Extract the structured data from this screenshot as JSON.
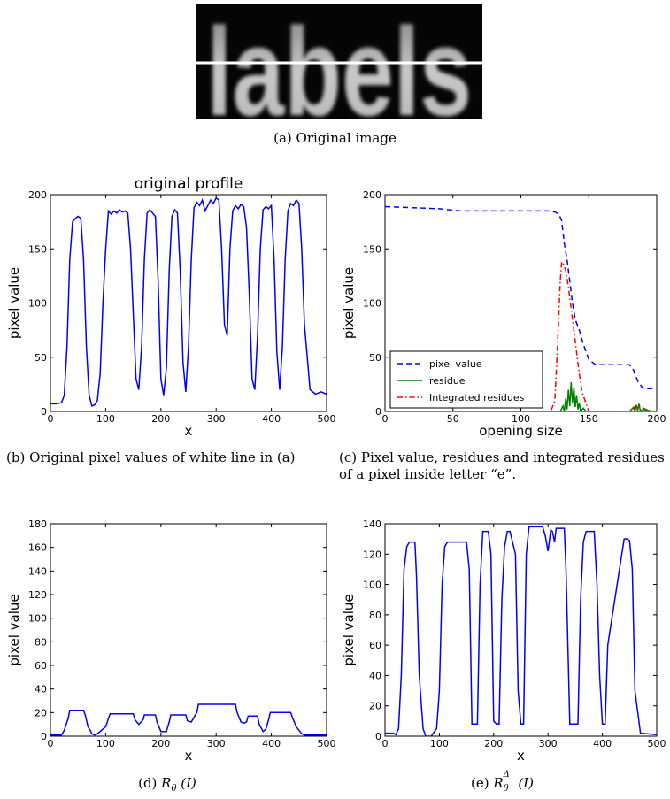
{
  "figure": {
    "image_panel": {
      "word": "labels",
      "caption": "(a) Original image"
    },
    "captions": {
      "b": "(b) Original pixel values of white line in (a)",
      "c": "(c) Pixel value, residues and integrated residues of a pixel inside letter “e”.",
      "d_prefix": "(d) ",
      "d_math": "R",
      "d_sub": "θ",
      "d_arg": " (I)",
      "e_prefix": "(e) ",
      "e_math": "R",
      "e_sup": "Δ",
      "e_sub": "θ",
      "e_arg": " (I)"
    }
  },
  "chart_data": [
    {
      "id": "b",
      "type": "line",
      "title": "original profile",
      "xlabel": "x",
      "ylabel": "pixel value",
      "xlim": [
        0,
        500
      ],
      "ylim": [
        0,
        200
      ],
      "xticks": [
        "0",
        "100",
        "200",
        "300",
        "400",
        "500"
      ],
      "yticks": [
        "0",
        "50",
        "100",
        "150",
        "200"
      ],
      "series": [
        {
          "color": "#0000ff",
          "style": "solid",
          "x": [
            0,
            10,
            20,
            25,
            30,
            35,
            40,
            45,
            50,
            55,
            60,
            65,
            70,
            75,
            80,
            85,
            90,
            95,
            100,
            105,
            110,
            115,
            120,
            125,
            130,
            135,
            140,
            145,
            150,
            155,
            160,
            165,
            170,
            175,
            180,
            185,
            190,
            195,
            200,
            205,
            210,
            215,
            220,
            225,
            230,
            235,
            240,
            245,
            250,
            255,
            260,
            265,
            270,
            275,
            280,
            285,
            290,
            295,
            300,
            305,
            310,
            315,
            320,
            325,
            330,
            335,
            340,
            345,
            350,
            355,
            360,
            365,
            370,
            375,
            380,
            385,
            390,
            395,
            400,
            405,
            410,
            415,
            420,
            425,
            430,
            435,
            440,
            445,
            450,
            455,
            460,
            470,
            480,
            490,
            500
          ],
          "y": [
            7,
            7,
            8,
            15,
            60,
            140,
            175,
            178,
            180,
            178,
            140,
            60,
            15,
            5,
            6,
            10,
            35,
            100,
            150,
            185,
            182,
            185,
            183,
            186,
            184,
            185,
            183,
            150,
            90,
            30,
            20,
            60,
            140,
            183,
            186,
            183,
            180,
            120,
            30,
            15,
            40,
            130,
            180,
            186,
            183,
            130,
            45,
            18,
            60,
            140,
            188,
            193,
            190,
            195,
            185,
            190,
            195,
            192,
            197,
            195,
            150,
            80,
            70,
            150,
            185,
            190,
            187,
            191,
            189,
            170,
            110,
            30,
            20,
            70,
            150,
            186,
            189,
            187,
            190,
            140,
            55,
            20,
            60,
            140,
            185,
            192,
            190,
            195,
            192,
            150,
            80,
            20,
            16,
            18,
            16
          ]
        }
      ]
    },
    {
      "id": "c",
      "type": "line",
      "xlabel": "opening size",
      "ylabel": "pixel value",
      "xlim": [
        0,
        200
      ],
      "ylim": [
        0,
        200
      ],
      "xticks": [
        "0",
        "50",
        "100",
        "150",
        "200"
      ],
      "yticks": [
        "0",
        "50",
        "100",
        "150",
        "200"
      ],
      "legend": "lower-left",
      "series": [
        {
          "name": "pixel value",
          "color": "#0000ff",
          "style": "dashed",
          "x": [
            0,
            20,
            40,
            55,
            80,
            100,
            120,
            125,
            128,
            130,
            132,
            134,
            136,
            138,
            140,
            143,
            146,
            150,
            155,
            160,
            175,
            180,
            183,
            186,
            190,
            195,
            197
          ],
          "y": [
            189,
            188,
            187,
            185,
            185,
            185,
            185,
            184,
            182,
            176,
            155,
            140,
            120,
            100,
            85,
            75,
            62,
            48,
            43,
            43,
            43,
            43,
            38,
            28,
            21,
            21,
            21
          ]
        },
        {
          "name": "residue",
          "color": "#008000",
          "style": "solid",
          "x": [
            0,
            125,
            129,
            131,
            132,
            133,
            134,
            135,
            136,
            137,
            138,
            139,
            140,
            141,
            142,
            143,
            144,
            146,
            148,
            150,
            180,
            183,
            184,
            185,
            186,
            187,
            188,
            190,
            197
          ],
          "y": [
            0,
            0,
            0,
            5,
            0,
            12,
            2,
            20,
            5,
            27,
            8,
            22,
            4,
            15,
            2,
            8,
            0,
            3,
            0,
            0,
            0,
            4,
            0,
            6,
            1,
            7,
            0,
            2,
            0
          ]
        },
        {
          "name": "Integrated residues",
          "color": "#ff0000",
          "style": "dashdot",
          "x": [
            0,
            122,
            125,
            127,
            129,
            130,
            131,
            133,
            135,
            137,
            139,
            141,
            143,
            145,
            150,
            180,
            183,
            186,
            189,
            192,
            197
          ],
          "y": [
            0,
            0,
            10,
            60,
            120,
            138,
            137,
            130,
            115,
            95,
            75,
            55,
            35,
            18,
            0,
            0,
            3,
            6,
            4,
            2,
            0
          ]
        }
      ]
    },
    {
      "id": "d",
      "type": "line",
      "xlabel": "x",
      "ylabel": "pixel value",
      "xlim": [
        0,
        500
      ],
      "ylim": [
        0,
        180
      ],
      "xticks": [
        "0",
        "100",
        "200",
        "300",
        "400",
        "500"
      ],
      "yticks": [
        "0",
        "20",
        "40",
        "60",
        "80",
        "100",
        "120",
        "140",
        "160",
        "180"
      ],
      "series": [
        {
          "color": "#0000ff",
          "style": "solid",
          "x": [
            0,
            20,
            25,
            32,
            35,
            60,
            63,
            68,
            72,
            75,
            80,
            85,
            100,
            105,
            108,
            150,
            153,
            160,
            168,
            170,
            190,
            193,
            200,
            210,
            215,
            218,
            245,
            248,
            255,
            265,
            268,
            335,
            338,
            345,
            350,
            355,
            358,
            375,
            378,
            385,
            390,
            395,
            398,
            435,
            438,
            445,
            455,
            460,
            500
          ],
          "y": [
            1,
            1,
            5,
            15,
            22,
            22,
            18,
            8,
            5,
            2,
            1,
            2,
            8,
            15,
            19,
            19,
            14,
            10,
            14,
            18,
            18,
            12,
            4,
            4,
            12,
            18,
            18,
            13,
            12,
            20,
            27,
            27,
            20,
            12,
            11,
            12,
            17,
            17,
            10,
            4,
            6,
            14,
            20,
            20,
            16,
            8,
            2,
            1,
            1
          ]
        }
      ]
    },
    {
      "id": "e",
      "type": "line",
      "xlabel": "x",
      "ylabel": "pixel value",
      "xlim": [
        0,
        500
      ],
      "ylim": [
        0,
        140
      ],
      "xticks": [
        "0",
        "100",
        "200",
        "300",
        "400",
        "500"
      ],
      "yticks": [
        "0",
        "20",
        "40",
        "60",
        "80",
        "100",
        "120",
        "140"
      ],
      "series": [
        {
          "color": "#0000ff",
          "style": "solid",
          "x": [
            0,
            15,
            20,
            25,
            30,
            35,
            40,
            45,
            55,
            58,
            63,
            70,
            75,
            85,
            95,
            100,
            105,
            110,
            115,
            150,
            155,
            160,
            170,
            175,
            180,
            190,
            195,
            200,
            205,
            210,
            215,
            220,
            225,
            230,
            240,
            245,
            250,
            255,
            260,
            265,
            270,
            290,
            295,
            300,
            303,
            305,
            308,
            312,
            315,
            320,
            330,
            333,
            340,
            345,
            355,
            360,
            365,
            370,
            375,
            385,
            390,
            395,
            400,
            405,
            410,
            440,
            445,
            450,
            455,
            460,
            470,
            500
          ],
          "y": [
            2,
            2,
            1,
            5,
            40,
            110,
            125,
            128,
            128,
            105,
            40,
            5,
            0,
            0,
            5,
            30,
            100,
            125,
            128,
            128,
            110,
            8,
            8,
            100,
            135,
            135,
            120,
            10,
            8,
            8,
            90,
            125,
            135,
            135,
            120,
            30,
            8,
            8,
            120,
            138,
            138,
            138,
            132,
            122,
            130,
            136,
            135,
            128,
            137,
            137,
            137,
            110,
            8,
            8,
            8,
            90,
            128,
            135,
            135,
            135,
            100,
            40,
            8,
            8,
            60,
            130,
            130,
            129,
            110,
            30,
            2,
            1
          ]
        }
      ]
    }
  ]
}
